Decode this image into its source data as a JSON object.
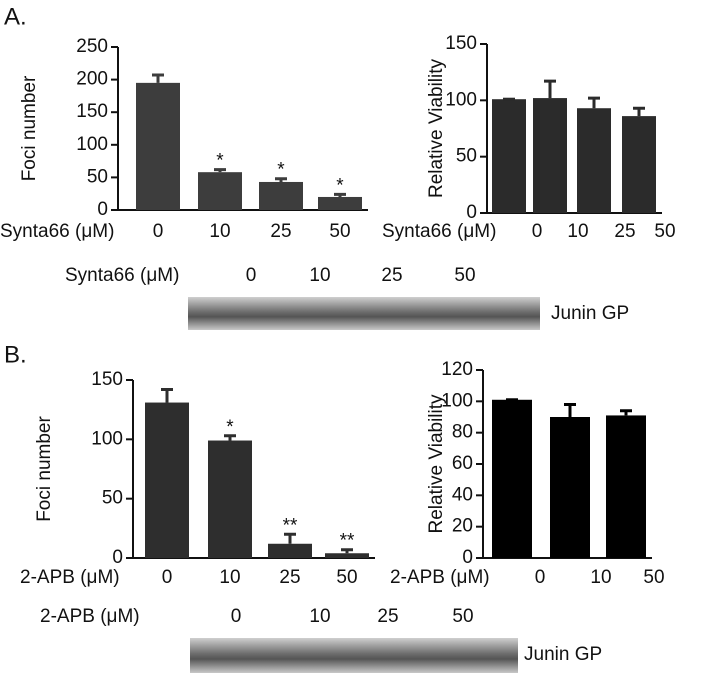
{
  "panel_labels": [
    "A.",
    "B."
  ],
  "chart_data": [
    {
      "type": "bar",
      "ylabel": "Foci number",
      "xlabel": "Synta66 (μM)",
      "categories": [
        "0",
        "10",
        "25",
        "50"
      ],
      "values": [
        195,
        58,
        43,
        20
      ],
      "errors": [
        12,
        4,
        5,
        4
      ],
      "annotations": [
        null,
        "*",
        "*",
        "*"
      ],
      "color": "#3d3d3d",
      "ylim": [
        0,
        250
      ],
      "yticks": [
        0,
        50,
        100,
        150,
        200,
        250
      ]
    },
    {
      "type": "bar",
      "ylabel": "Relative Viability",
      "xlabel": "Synta66 (μM)",
      "categories": [
        "0",
        "10",
        "25",
        "50"
      ],
      "values": [
        101,
        102,
        93,
        86
      ],
      "errors": [
        0,
        15,
        9,
        7
      ],
      "color": "#2b2b2b",
      "ylim": [
        0,
        150
      ],
      "yticks": [
        0,
        50,
        100,
        150
      ]
    },
    {
      "type": "bar",
      "ylabel": "Foci number",
      "xlabel": "2-APB (μM)",
      "categories": [
        "0",
        "10",
        "25",
        "50"
      ],
      "values": [
        131,
        99,
        12,
        4
      ],
      "errors": [
        11,
        4,
        8,
        3
      ],
      "annotations": [
        null,
        "*",
        "**",
        "**"
      ],
      "color": "#2e2e2e",
      "ylim": [
        0,
        150
      ],
      "yticks": [
        0,
        50,
        100,
        150
      ]
    },
    {
      "type": "bar",
      "ylabel": "Relative Viability",
      "xlabel": "2-APB (μM)",
      "categories": [
        "0",
        "10",
        "50"
      ],
      "values": [
        101,
        90,
        91
      ],
      "errors": [
        0,
        8,
        3
      ],
      "color": "#000000",
      "ylim": [
        0,
        120
      ],
      "yticks": [
        0,
        20,
        40,
        60,
        80,
        100,
        120
      ]
    }
  ],
  "blots": [
    {
      "treatment_label": "Synta66 (μM)",
      "lanes": [
        "0",
        "10",
        "25",
        "50"
      ],
      "band_label": "Junin GP"
    },
    {
      "treatment_label": "2-APB (μM)",
      "lanes": [
        "0",
        "10",
        "25",
        "50"
      ],
      "band_label": "Junin GP"
    }
  ]
}
